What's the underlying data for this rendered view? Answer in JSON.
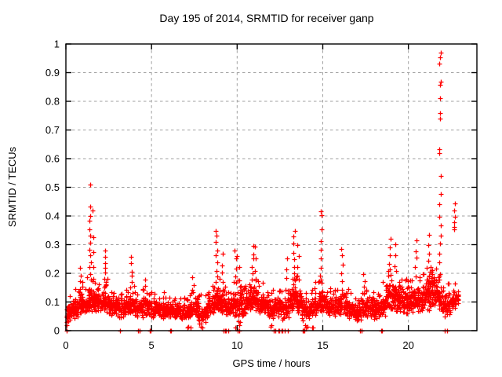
{
  "chart_data": {
    "type": "scatter",
    "title": "Day 195 of 2014, SRMTID for receiver ganp",
    "xlabel": "GPS time / hours",
    "ylabel": "SRMTID / TECUs",
    "xlim": [
      0,
      24
    ],
    "ylim": [
      0,
      1
    ],
    "xticks": [
      0,
      5,
      10,
      15,
      20
    ],
    "yticks": [
      0,
      0.1,
      0.2,
      0.3,
      0.4,
      0.5,
      0.6,
      0.7,
      0.8,
      0.9,
      1
    ],
    "grid": {
      "style": "dashed",
      "color": "#a0a0a0",
      "on_major_ticks": true
    },
    "legend": "none",
    "marker": "plus",
    "marker_color": "#ff0000",
    "border_color": "#000000",
    "background_color": "#ffffff",
    "x_data_range": [
      0,
      22.9
    ],
    "point_cloud": {
      "description": "Dense band of red + markers; each bin gives [x_start, band_low, band_high, point_count] for 0.25-hour bins; spike_columns are vertical outlier columns; zero_points_x are markers on the y=0 axis line.",
      "bin_width_hours": 0.25,
      "bins": [
        [
          0.0,
          0.03,
          0.1,
          26
        ],
        [
          0.25,
          0.04,
          0.11,
          30
        ],
        [
          0.5,
          0.04,
          0.12,
          30
        ],
        [
          0.75,
          0.05,
          0.15,
          32
        ],
        [
          1.0,
          0.05,
          0.13,
          30
        ],
        [
          1.25,
          0.06,
          0.16,
          34
        ],
        [
          1.5,
          0.06,
          0.15,
          32
        ],
        [
          1.75,
          0.06,
          0.14,
          30
        ],
        [
          2.0,
          0.06,
          0.14,
          30
        ],
        [
          2.25,
          0.06,
          0.15,
          32
        ],
        [
          2.5,
          0.05,
          0.13,
          30
        ],
        [
          2.75,
          0.05,
          0.12,
          30
        ],
        [
          3.0,
          0.04,
          0.11,
          28
        ],
        [
          3.25,
          0.04,
          0.11,
          28
        ],
        [
          3.5,
          0.05,
          0.12,
          30
        ],
        [
          3.75,
          0.05,
          0.13,
          32
        ],
        [
          4.0,
          0.04,
          0.12,
          28
        ],
        [
          4.25,
          0.04,
          0.12,
          28
        ],
        [
          4.5,
          0.05,
          0.13,
          30
        ],
        [
          4.75,
          0.05,
          0.12,
          28
        ],
        [
          5.0,
          0.04,
          0.11,
          28
        ],
        [
          5.25,
          0.04,
          0.11,
          28
        ],
        [
          5.5,
          0.04,
          0.11,
          28
        ],
        [
          5.75,
          0.04,
          0.1,
          28
        ],
        [
          6.0,
          0.04,
          0.1,
          26
        ],
        [
          6.25,
          0.04,
          0.1,
          28
        ],
        [
          6.5,
          0.04,
          0.1,
          28
        ],
        [
          6.75,
          0.03,
          0.1,
          26
        ],
        [
          7.0,
          0.03,
          0.1,
          26
        ],
        [
          7.25,
          0.04,
          0.11,
          30
        ],
        [
          7.5,
          0.04,
          0.11,
          30
        ],
        [
          7.75,
          0.02,
          0.1,
          26
        ],
        [
          8.0,
          0.03,
          0.1,
          28
        ],
        [
          8.25,
          0.04,
          0.12,
          30
        ],
        [
          8.5,
          0.05,
          0.14,
          32
        ],
        [
          8.75,
          0.06,
          0.16,
          34
        ],
        [
          9.0,
          0.05,
          0.14,
          30
        ],
        [
          9.25,
          0.04,
          0.13,
          28
        ],
        [
          9.5,
          0.04,
          0.12,
          28
        ],
        [
          9.75,
          0.05,
          0.14,
          30
        ],
        [
          10.0,
          0.03,
          0.15,
          30
        ],
        [
          10.25,
          0.04,
          0.13,
          28
        ],
        [
          10.5,
          0.05,
          0.14,
          30
        ],
        [
          10.75,
          0.06,
          0.16,
          32
        ],
        [
          11.0,
          0.06,
          0.16,
          32
        ],
        [
          11.25,
          0.05,
          0.14,
          30
        ],
        [
          11.5,
          0.05,
          0.13,
          28
        ],
        [
          11.75,
          0.04,
          0.12,
          28
        ],
        [
          12.0,
          0.04,
          0.12,
          28
        ],
        [
          12.25,
          0.03,
          0.12,
          26
        ],
        [
          12.5,
          0.03,
          0.12,
          26
        ],
        [
          12.75,
          0.04,
          0.13,
          28
        ],
        [
          13.0,
          0.05,
          0.15,
          30
        ],
        [
          13.25,
          0.06,
          0.16,
          32
        ],
        [
          13.5,
          0.05,
          0.15,
          30
        ],
        [
          13.75,
          0.02,
          0.12,
          26
        ],
        [
          14.0,
          0.03,
          0.11,
          26
        ],
        [
          14.25,
          0.04,
          0.12,
          28
        ],
        [
          14.5,
          0.05,
          0.14,
          30
        ],
        [
          14.75,
          0.06,
          0.15,
          32
        ],
        [
          15.0,
          0.05,
          0.14,
          30
        ],
        [
          15.25,
          0.04,
          0.12,
          28
        ],
        [
          15.5,
          0.04,
          0.12,
          28
        ],
        [
          15.75,
          0.05,
          0.13,
          30
        ],
        [
          16.0,
          0.05,
          0.14,
          30
        ],
        [
          16.25,
          0.04,
          0.12,
          28
        ],
        [
          16.5,
          0.04,
          0.11,
          28
        ],
        [
          16.75,
          0.03,
          0.1,
          26
        ],
        [
          17.0,
          0.03,
          0.1,
          26
        ],
        [
          17.25,
          0.04,
          0.12,
          28
        ],
        [
          17.5,
          0.04,
          0.12,
          28
        ],
        [
          17.75,
          0.04,
          0.11,
          28
        ],
        [
          18.0,
          0.04,
          0.11,
          28
        ],
        [
          18.25,
          0.04,
          0.12,
          28
        ],
        [
          18.5,
          0.05,
          0.14,
          30
        ],
        [
          18.75,
          0.06,
          0.18,
          34
        ],
        [
          19.0,
          0.06,
          0.18,
          34
        ],
        [
          19.25,
          0.06,
          0.17,
          32
        ],
        [
          19.5,
          0.06,
          0.16,
          32
        ],
        [
          19.75,
          0.05,
          0.15,
          30
        ],
        [
          20.0,
          0.05,
          0.15,
          30
        ],
        [
          20.25,
          0.06,
          0.16,
          32
        ],
        [
          20.5,
          0.06,
          0.16,
          32
        ],
        [
          20.75,
          0.06,
          0.17,
          32
        ],
        [
          21.0,
          0.07,
          0.2,
          36
        ],
        [
          21.25,
          0.07,
          0.2,
          36
        ],
        [
          21.5,
          0.06,
          0.18,
          32
        ],
        [
          21.75,
          0.05,
          0.16,
          30
        ],
        [
          22.0,
          0.04,
          0.13,
          26
        ],
        [
          22.25,
          0.05,
          0.14,
          26
        ],
        [
          22.5,
          0.06,
          0.15,
          28
        ],
        [
          22.75,
          0.08,
          0.14,
          16
        ]
      ],
      "spike_columns": [
        {
          "x": 0.9,
          "values": [
            0.22,
            0.19,
            0.17,
            0.15
          ]
        },
        {
          "x": 1.45,
          "values": [
            0.51,
            0.43,
            0.4,
            0.38,
            0.35,
            0.33,
            0.31,
            0.28,
            0.26,
            0.24,
            0.22,
            0.2,
            0.18
          ]
        },
        {
          "x": 1.62,
          "values": [
            0.42,
            0.33,
            0.27,
            0.22,
            0.18
          ]
        },
        {
          "x": 2.3,
          "values": [
            0.28,
            0.26,
            0.24,
            0.22,
            0.2,
            0.18,
            0.16
          ]
        },
        {
          "x": 3.8,
          "values": [
            0.26,
            0.24,
            0.21,
            0.19,
            0.17,
            0.15
          ]
        },
        {
          "x": 4.6,
          "values": [
            0.18,
            0.16,
            0.14
          ]
        },
        {
          "x": 7.4,
          "values": [
            0.19,
            0.16,
            0.14
          ]
        },
        {
          "x": 8.8,
          "values": [
            0.35,
            0.33,
            0.31,
            0.28,
            0.26,
            0.24,
            0.21,
            0.19,
            0.17
          ]
        },
        {
          "x": 9.1,
          "values": [
            0.27,
            0.23,
            0.2,
            0.17
          ]
        },
        {
          "x": 9.9,
          "values": [
            0.28,
            0.25,
            0.22,
            0.19,
            0.17
          ]
        },
        {
          "x": 10.05,
          "values": [
            0.26,
            0.22,
            0.18
          ]
        },
        {
          "x": 10.9,
          "values": [
            0.3,
            0.27,
            0.25,
            0.22,
            0.2,
            0.18
          ]
        },
        {
          "x": 11.1,
          "values": [
            0.29,
            0.25,
            0.21,
            0.18
          ]
        },
        {
          "x": 12.9,
          "values": [
            0.25,
            0.21,
            0.18
          ]
        },
        {
          "x": 13.3,
          "values": [
            0.35,
            0.33,
            0.3,
            0.27,
            0.25,
            0.22,
            0.2,
            0.18
          ]
        },
        {
          "x": 13.55,
          "values": [
            0.3,
            0.26,
            0.22,
            0.19
          ]
        },
        {
          "x": 14.9,
          "values": [
            0.42,
            0.4,
            0.35,
            0.31,
            0.28,
            0.25,
            0.22,
            0.19,
            0.17
          ]
        },
        {
          "x": 16.1,
          "values": [
            0.29,
            0.26,
            0.23,
            0.2,
            0.17
          ]
        },
        {
          "x": 17.4,
          "values": [
            0.2,
            0.17,
            0.15
          ]
        },
        {
          "x": 18.9,
          "values": [
            0.32,
            0.29,
            0.26,
            0.23,
            0.21,
            0.19
          ]
        },
        {
          "x": 19.2,
          "values": [
            0.3,
            0.26,
            0.22
          ]
        },
        {
          "x": 20.4,
          "values": [
            0.31,
            0.28,
            0.25,
            0.22,
            0.19
          ]
        },
        {
          "x": 21.2,
          "values": [
            0.33,
            0.3,
            0.27,
            0.24,
            0.21
          ]
        },
        {
          "x": 21.85,
          "values": [
            0.97,
            0.95,
            0.93,
            0.87,
            0.86,
            0.81,
            0.76,
            0.74,
            0.63,
            0.62,
            0.54,
            0.48,
            0.44,
            0.4,
            0.37,
            0.33,
            0.3,
            0.27,
            0.24
          ]
        },
        {
          "x": 22.7,
          "values": [
            0.44,
            0.42,
            0.4,
            0.38,
            0.36,
            0.35
          ]
        }
      ],
      "zero_points_x": [
        0.05,
        3.14,
        3.18,
        4.2,
        4.3,
        4.88,
        4.93,
        6.1,
        6.14,
        9.2,
        9.28,
        9.33,
        9.5,
        10.05,
        10.1,
        12.15,
        12.25,
        12.4,
        12.45,
        12.58,
        12.63,
        12.8,
        12.95,
        13.82,
        13.87,
        13.92,
        17.17,
        17.28,
        18.43,
        18.48,
        22.1,
        22.14,
        22.24,
        22.28
      ],
      "near_zero_points": [
        [
          0.03,
          0.02
        ],
        [
          0.05,
          0.03
        ],
        [
          7.1,
          0.012
        ],
        [
          7.15,
          0.015
        ],
        [
          7.28,
          0.012
        ],
        [
          7.9,
          0.015
        ],
        [
          7.95,
          0.01
        ],
        [
          9.9,
          0.01
        ],
        [
          10.12,
          0.02
        ],
        [
          10.15,
          0.03
        ],
        [
          11.95,
          0.015
        ],
        [
          12.0,
          0.02
        ],
        [
          13.97,
          0.02
        ],
        [
          14.0,
          0.012
        ],
        [
          14.1,
          0.015
        ],
        [
          14.4,
          0.01
        ],
        [
          14.45,
          0.012
        ]
      ]
    }
  }
}
